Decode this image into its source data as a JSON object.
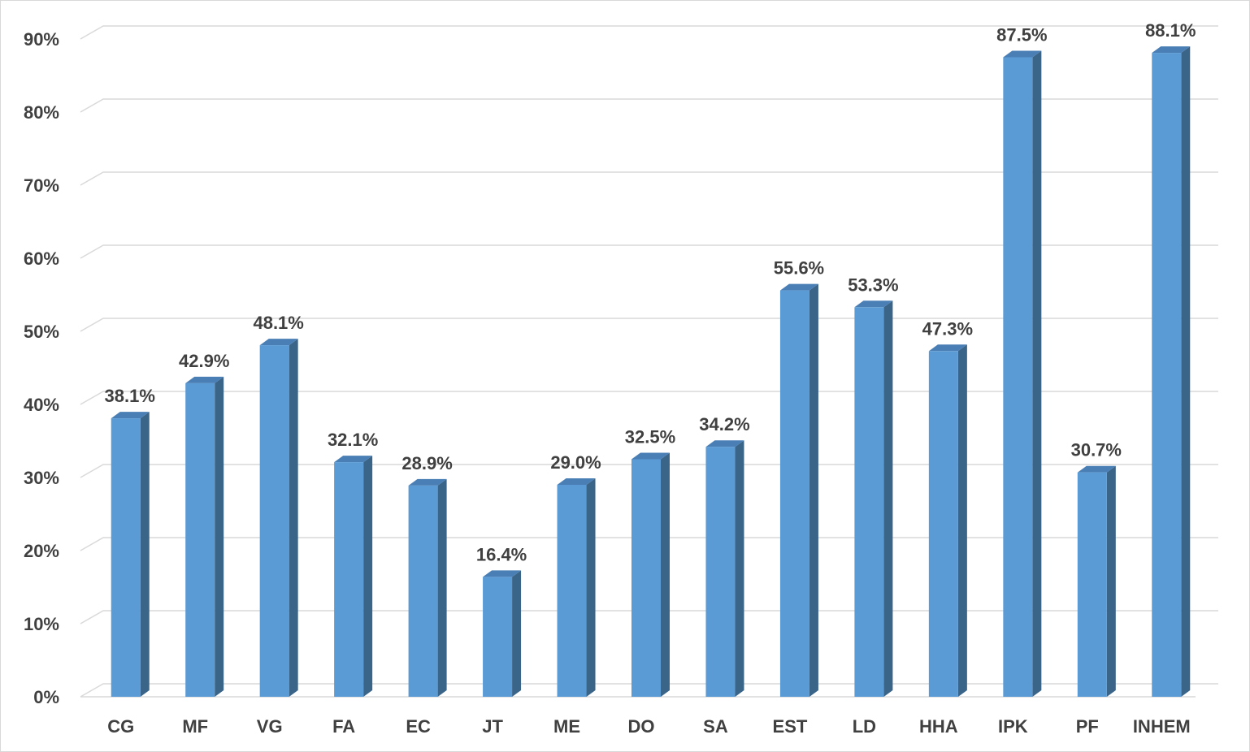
{
  "colors": {
    "bar_front": "#5b9bd5",
    "bar_side": "#3b6489",
    "bar_top": "#4a7fb5",
    "grid": "#d9d9d9",
    "text": "#404040"
  },
  "chart_data": {
    "type": "bar",
    "title": "",
    "xlabel": "",
    "ylabel": "",
    "categories": [
      "CG",
      "MF",
      "VG",
      "FA",
      "EC",
      "JT",
      "ME",
      "DO",
      "SA",
      "EST",
      "LD",
      "HHA",
      "IPK",
      "PF",
      "INHEM"
    ],
    "values": [
      38.1,
      42.9,
      48.1,
      32.1,
      28.9,
      16.4,
      29.0,
      32.5,
      34.2,
      55.6,
      53.3,
      47.3,
      87.5,
      30.7,
      88.1
    ],
    "data_labels": [
      "38.1%",
      "42.9%",
      "48.1%",
      "32.1%",
      "28.9%",
      "16.4%",
      "29.0%",
      "32.5%",
      "34.2%",
      "55.6%",
      "53.3%",
      "47.3%",
      "87.5%",
      "30.7%",
      "88.1%"
    ],
    "ylim": [
      0,
      90
    ],
    "yticks": [
      0,
      10,
      20,
      30,
      40,
      50,
      60,
      70,
      80,
      90
    ],
    "ytick_labels": [
      "0%",
      "10%",
      "20%",
      "30%",
      "40%",
      "50%",
      "60%",
      "70%",
      "80%",
      "90%"
    ],
    "grid": true,
    "legend": "none",
    "style": "3d-clustered-column"
  }
}
